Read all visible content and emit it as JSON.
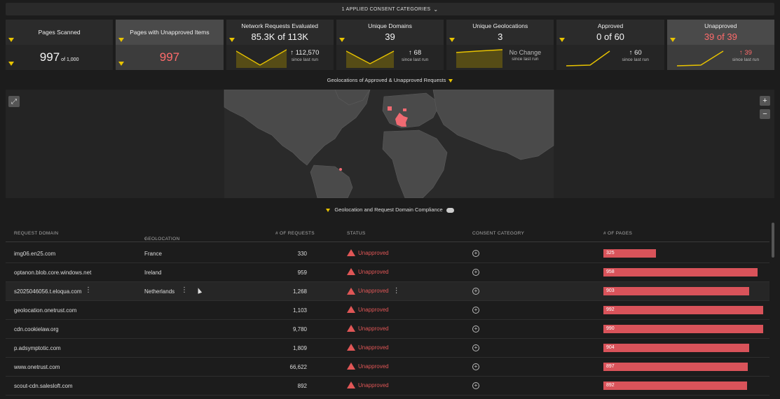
{
  "consent_bar": {
    "label": "1 APPLIED CONSENT CATEGORIES",
    "chevron_icon": "chevron-down-icon"
  },
  "cards": [
    {
      "title": "Pages Scanned",
      "big_value": "997",
      "big_suffix": "of 1,000"
    },
    {
      "title": "Pages with Unapproved Items",
      "big_value": "997"
    },
    {
      "title": "Network Requests Evaluated",
      "value": "85.3K of 113K",
      "delta": "↑ 112,570",
      "delta_sub": "since last run"
    },
    {
      "title": "Unique Domains",
      "value": "39",
      "delta": "↑ 68",
      "delta_sub": "since last run"
    },
    {
      "title": "Unique Geolocations",
      "value": "3",
      "delta": "No Change",
      "delta_sub": "since last run"
    },
    {
      "title": "Approved",
      "value": "0 of 60",
      "delta": "↑ 60",
      "delta_sub": "since last run"
    },
    {
      "title": "Unapproved",
      "value": "39 of 39",
      "delta": "↑ 39",
      "delta_sub": "since last run"
    }
  ],
  "map": {
    "title": "Geolocations of Approved & Unapproved Requests",
    "zoom_in": "+",
    "zoom_out": "−"
  },
  "table": {
    "title": "Geolocation and Request Domain Compliance",
    "columns": [
      "REQUEST DOMAIN",
      "GEOLOCATION",
      "# OF REQUESTS",
      "STATUS",
      "CONSENT CATEGORY",
      "# OF PAGES"
    ],
    "sort_indicator": "↑",
    "rows": [
      {
        "domain": "img06.en25.com",
        "geo": "France",
        "requests": "330",
        "status": "Unapproved",
        "pages": "325",
        "pages_fraction": 0.325
      },
      {
        "domain": "optanon.blob.core.windows.net",
        "geo": "Ireland",
        "requests": "959",
        "status": "Unapproved",
        "pages": "958",
        "pages_fraction": 0.958
      },
      {
        "domain": "s2025046056.t.eloqua.com",
        "geo": "Netherlands",
        "requests": "1,268",
        "status": "Unapproved",
        "pages": "903",
        "pages_fraction": 0.903
      },
      {
        "domain": "geolocation.onetrust.com",
        "geo": "",
        "requests": "1,103",
        "status": "Unapproved",
        "pages": "992",
        "pages_fraction": 0.992
      },
      {
        "domain": "cdn.cookielaw.org",
        "geo": "",
        "requests": "9,780",
        "status": "Unapproved",
        "pages": "990",
        "pages_fraction": 0.99
      },
      {
        "domain": "p.adsymptotic.com",
        "geo": "",
        "requests": "1,809",
        "status": "Unapproved",
        "pages": "904",
        "pages_fraction": 0.904
      },
      {
        "domain": "www.onetrust.com",
        "geo": "",
        "requests": "66,622",
        "status": "Unapproved",
        "pages": "897",
        "pages_fraction": 0.897
      },
      {
        "domain": "scout-cdn.salesloft.com",
        "geo": "",
        "requests": "892",
        "status": "Unapproved",
        "pages": "892",
        "pages_fraction": 0.892
      }
    ]
  },
  "colors": {
    "accent_yellow": "#e8c300",
    "unapproved_red": "#e05656",
    "bar_red": "#d9535a"
  }
}
